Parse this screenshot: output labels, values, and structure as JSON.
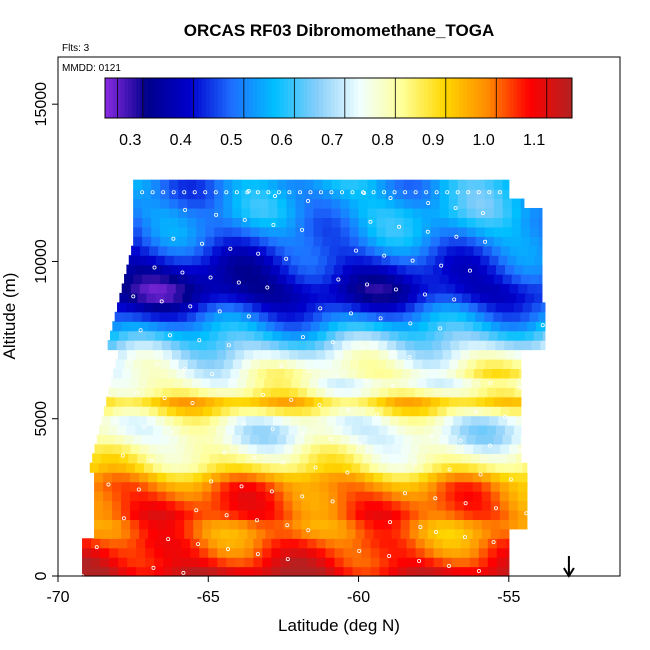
{
  "chart_data": {
    "type": "heatmap",
    "title": "ORCAS RF03 Dibromomethane_TOGA",
    "annotations": [
      "Flts: 3",
      "MMDD: 0121"
    ],
    "xlabel": "Latitude (deg N)",
    "ylabel": "Altitude (m)",
    "xlim": [
      -70,
      -51.3
    ],
    "ylim": [
      0,
      16500
    ],
    "xticks": [
      -70,
      -65,
      -60,
      -55
    ],
    "xtick_labels": [
      "-70",
      "-65",
      "-60",
      "-55"
    ],
    "yticks": [
      0,
      5000,
      10000,
      15000
    ],
    "ytick_labels": [
      "0",
      "5000",
      "10000",
      "15000"
    ],
    "grid": false,
    "colorbar": {
      "placement": "top-inside",
      "min": 0.25,
      "max": 1.175,
      "ticks": [
        0.3,
        0.4,
        0.5,
        0.6,
        0.7,
        0.8,
        0.9,
        1.0,
        1.1
      ],
      "tick_labels": [
        "0.3",
        "0.4",
        "0.5",
        "0.6",
        "0.7",
        "0.8",
        "0.9",
        "1.0",
        "1.1"
      ],
      "colors": [
        "#8a2be2",
        "#00008b",
        "#0000cd",
        "#1e6fff",
        "#00bfff",
        "#87cefa",
        "#f0ffff",
        "#ffff99",
        "#ffd700",
        "#ff8c00",
        "#ff0000",
        "#b22222"
      ]
    },
    "altitude_profile_m": [
      {
        "altitude": 12200,
        "value": 0.55
      },
      {
        "altitude": 11500,
        "value": 0.56
      },
      {
        "altitude": 10800,
        "value": 0.52
      },
      {
        "altitude": 10200,
        "value": 0.46
      },
      {
        "altitude": 9600,
        "value": 0.4
      },
      {
        "altitude": 9000,
        "value": 0.36
      },
      {
        "altitude": 8500,
        "value": 0.45
      },
      {
        "altitude": 8000,
        "value": 0.55
      },
      {
        "altitude": 7500,
        "value": 0.65
      },
      {
        "altitude": 7000,
        "value": 0.74
      },
      {
        "altitude": 6500,
        "value": 0.8
      },
      {
        "altitude": 6000,
        "value": 0.78
      },
      {
        "altitude": 5500,
        "value": 0.95
      },
      {
        "altitude": 5000,
        "value": 0.78
      },
      {
        "altitude": 4500,
        "value": 0.74
      },
      {
        "altitude": 4000,
        "value": 0.8
      },
      {
        "altitude": 3500,
        "value": 0.86
      },
      {
        "altitude": 3000,
        "value": 1.0
      },
      {
        "altitude": 2500,
        "value": 1.04
      },
      {
        "altitude": 2000,
        "value": 1.06
      },
      {
        "altitude": 1500,
        "value": 1.0
      },
      {
        "altitude": 1000,
        "value": 1.04
      },
      {
        "altitude": 500,
        "value": 1.08
      },
      {
        "altitude": 0,
        "value": 1.15
      }
    ],
    "marker": {
      "type": "arrow-down",
      "latitude": -53
    }
  }
}
